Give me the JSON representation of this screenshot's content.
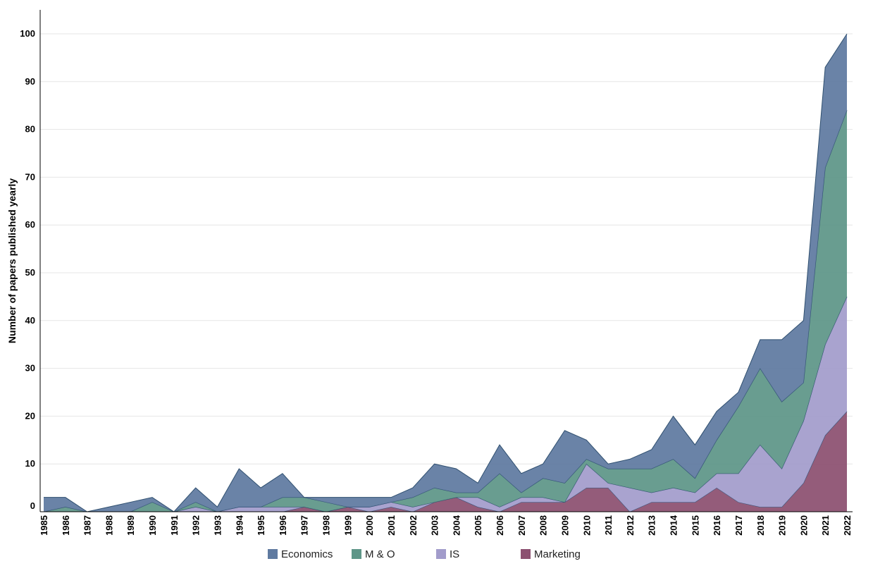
{
  "chart_data": {
    "type": "area",
    "stacked": true,
    "ylabel": "Number of papers published yearly",
    "xlabel": "",
    "title": "",
    "ylim": [
      0,
      100
    ],
    "yticks": [
      0,
      10,
      20,
      30,
      40,
      50,
      60,
      70,
      80,
      90,
      100
    ],
    "grid": "horizontal",
    "legend_position": "bottom",
    "categories": [
      "1985",
      "1986",
      "1987",
      "1988",
      "1989",
      "1990",
      "1991",
      "1992",
      "1993",
      "1994",
      "1995",
      "1996",
      "1997",
      "1998",
      "1999",
      "2000",
      "2001",
      "2002",
      "2003",
      "2004",
      "2005",
      "2006",
      "2007",
      "2008",
      "2009",
      "2010",
      "2011",
      "2012",
      "2013",
      "2014",
      "2015",
      "2016",
      "2017",
      "2018",
      "2019",
      "2020",
      "2021",
      "2022"
    ],
    "series": [
      {
        "name": "Marketing",
        "color": "#8c5070",
        "values": [
          0,
          0,
          0,
          0,
          0,
          0,
          0,
          0,
          0,
          0,
          0,
          0,
          1,
          0,
          1,
          0,
          1,
          0,
          2,
          3,
          1,
          0,
          2,
          2,
          2,
          5,
          5,
          0,
          2,
          2,
          2,
          5,
          2,
          1,
          1,
          6,
          16,
          21
        ]
      },
      {
        "name": "IS",
        "color": "#a29ccb",
        "values": [
          0,
          0,
          0,
          0,
          0,
          0,
          0,
          1,
          0,
          1,
          1,
          1,
          0,
          0,
          0,
          1,
          1,
          1,
          0,
          0,
          2,
          1,
          1,
          1,
          0,
          5,
          1,
          5,
          2,
          3,
          2,
          3,
          6,
          13,
          8,
          13,
          19,
          24
        ]
      },
      {
        "name": "M & O",
        "color": "#5e9688",
        "values": [
          0,
          1,
          0,
          0,
          0,
          2,
          0,
          1,
          0,
          0,
          0,
          2,
          2,
          2,
          0,
          0,
          0,
          2,
          3,
          1,
          1,
          7,
          1,
          4,
          4,
          1,
          3,
          4,
          5,
          6,
          3,
          7,
          14,
          16,
          14,
          8,
          37,
          39
        ]
      },
      {
        "name": "Economics",
        "color": "#5f7aa0",
        "values": [
          3,
          2,
          0,
          1,
          2,
          1,
          0,
          3,
          1,
          8,
          4,
          5,
          0,
          1,
          2,
          2,
          1,
          2,
          5,
          5,
          2,
          6,
          4,
          3,
          11,
          4,
          1,
          2,
          4,
          9,
          7,
          6,
          3,
          6,
          13,
          13,
          21,
          16
        ]
      }
    ]
  }
}
